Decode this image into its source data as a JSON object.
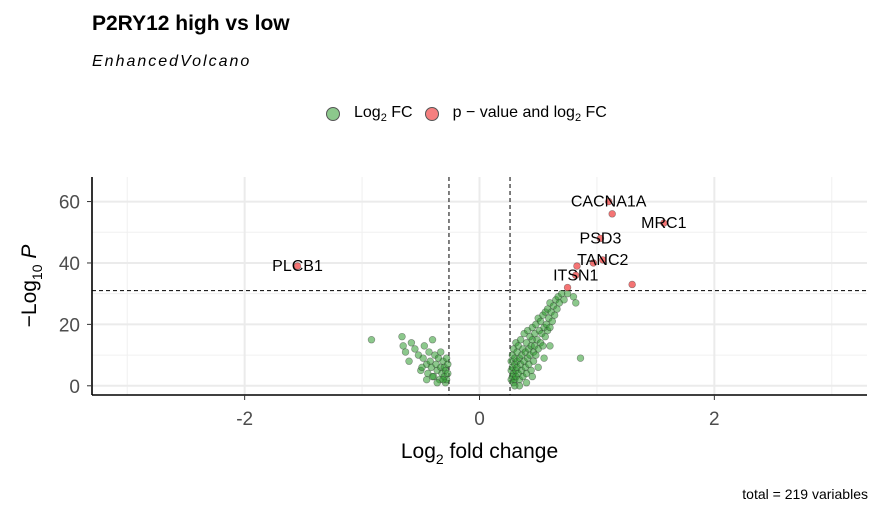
{
  "chart_data": {
    "type": "scatter",
    "title": "P2RY12 high vs low",
    "subtitle": "EnhancedVolcano",
    "xlabel": "Log2 fold change",
    "ylabel": "−Log10 P",
    "xlim": [
      -3.3,
      3.3
    ],
    "ylim": [
      -3,
      68
    ],
    "x_ticks": [
      -2,
      0,
      2
    ],
    "y_ticks": [
      0,
      20,
      40,
      60
    ],
    "x_tick_labels": [
      "-2",
      "0",
      "2"
    ],
    "y_tick_labels": [
      "0",
      "20",
      "40",
      "60"
    ],
    "fc_cutoff": [
      -0.26,
      0.26
    ],
    "p_cutoff": 31,
    "grid": true,
    "legend_position": "top",
    "caption": "total = 219 variables",
    "legend": [
      {
        "label": "Log",
        "sub": "2",
        "suffix": " FC",
        "color": "#2e9a2e"
      },
      {
        "label": "p − value and log",
        "sub": "2",
        "suffix": " FC",
        "color": "#ee2a2a"
      }
    ],
    "series": [
      {
        "name": "Log2 FC",
        "color": "#2e9a2e",
        "points": [
          [
            -0.92,
            15
          ],
          [
            -0.66,
            16
          ],
          [
            -0.65,
            13
          ],
          [
            -0.63,
            11
          ],
          [
            -0.6,
            8
          ],
          [
            -0.58,
            14
          ],
          [
            -0.55,
            12
          ],
          [
            -0.52,
            10
          ],
          [
            -0.5,
            5
          ],
          [
            -0.48,
            9
          ],
          [
            -0.47,
            13
          ],
          [
            -0.45,
            7
          ],
          [
            -0.44,
            4
          ],
          [
            -0.43,
            11
          ],
          [
            -0.42,
            8
          ],
          [
            -0.41,
            6
          ],
          [
            -0.4,
            15
          ],
          [
            -0.39,
            3
          ],
          [
            -0.38,
            10
          ],
          [
            -0.37,
            7
          ],
          [
            -0.36,
            5
          ],
          [
            -0.35,
            9
          ],
          [
            -0.34,
            2
          ],
          [
            -0.33,
            6
          ],
          [
            -0.32,
            4
          ],
          [
            -0.31,
            8
          ],
          [
            -0.3,
            3
          ],
          [
            -0.3,
            6
          ],
          [
            -0.29,
            1
          ],
          [
            -0.29,
            5
          ],
          [
            -0.28,
            2
          ],
          [
            -0.28,
            9
          ],
          [
            -0.27,
            4
          ],
          [
            -0.27,
            7
          ],
          [
            -0.45,
            2
          ],
          [
            -0.36,
            1
          ],
          [
            -0.33,
            11
          ],
          [
            -0.31,
            2
          ],
          [
            -0.49,
            6
          ],
          [
            -0.4,
            3
          ],
          [
            0.27,
            2
          ],
          [
            0.27,
            5
          ],
          [
            0.27,
            8
          ],
          [
            0.28,
            3
          ],
          [
            0.28,
            10
          ],
          [
            0.28,
            6
          ],
          [
            0.29,
            1
          ],
          [
            0.29,
            4
          ],
          [
            0.29,
            12
          ],
          [
            0.3,
            7
          ],
          [
            0.3,
            9
          ],
          [
            0.3,
            2
          ],
          [
            0.31,
            5
          ],
          [
            0.31,
            14
          ],
          [
            0.31,
            3
          ],
          [
            0.32,
            8
          ],
          [
            0.32,
            11
          ],
          [
            0.32,
            6
          ],
          [
            0.33,
            4
          ],
          [
            0.33,
            13
          ],
          [
            0.34,
            9
          ],
          [
            0.34,
            2
          ],
          [
            0.35,
            7
          ],
          [
            0.35,
            15
          ],
          [
            0.36,
            5
          ],
          [
            0.36,
            10
          ],
          [
            0.37,
            12
          ],
          [
            0.37,
            3
          ],
          [
            0.38,
            8
          ],
          [
            0.38,
            17
          ],
          [
            0.39,
            6
          ],
          [
            0.39,
            11
          ],
          [
            0.4,
            14
          ],
          [
            0.4,
            4
          ],
          [
            0.41,
            9
          ],
          [
            0.41,
            18
          ],
          [
            0.42,
            12
          ],
          [
            0.42,
            7
          ],
          [
            0.43,
            16
          ],
          [
            0.43,
            10
          ],
          [
            0.44,
            13
          ],
          [
            0.44,
            5
          ],
          [
            0.45,
            19
          ],
          [
            0.45,
            15
          ],
          [
            0.46,
            11
          ],
          [
            0.46,
            8
          ],
          [
            0.47,
            17
          ],
          [
            0.47,
            13
          ],
          [
            0.48,
            20
          ],
          [
            0.48,
            10
          ],
          [
            0.49,
            15
          ],
          [
            0.5,
            22
          ],
          [
            0.5,
            12
          ],
          [
            0.51,
            18
          ],
          [
            0.52,
            14
          ],
          [
            0.52,
            21
          ],
          [
            0.53,
            17
          ],
          [
            0.54,
            23
          ],
          [
            0.54,
            13
          ],
          [
            0.55,
            19
          ],
          [
            0.56,
            16
          ],
          [
            0.56,
            24
          ],
          [
            0.57,
            20
          ],
          [
            0.58,
            18
          ],
          [
            0.58,
            25
          ],
          [
            0.59,
            22
          ],
          [
            0.6,
            27
          ],
          [
            0.6,
            19
          ],
          [
            0.61,
            24
          ],
          [
            0.62,
            21
          ],
          [
            0.63,
            26
          ],
          [
            0.64,
            23
          ],
          [
            0.65,
            28
          ],
          [
            0.66,
            25
          ],
          [
            0.67,
            29
          ],
          [
            0.68,
            27
          ],
          [
            0.7,
            30
          ],
          [
            0.72,
            28
          ],
          [
            0.75,
            30
          ],
          [
            0.8,
            29
          ],
          [
            0.82,
            27
          ],
          [
            0.86,
            9
          ],
          [
            0.34,
            0
          ],
          [
            0.3,
            0
          ],
          [
            0.4,
            1
          ],
          [
            0.45,
            3
          ],
          [
            0.55,
            9
          ],
          [
            0.6,
            13
          ],
          [
            0.5,
            6
          ]
        ]
      },
      {
        "name": "p – value and log2 FC",
        "color": "#ee2a2a",
        "points": [
          [
            -1.55,
            39
          ],
          [
            1.1,
            60
          ],
          [
            1.13,
            56
          ],
          [
            1.57,
            53
          ],
          [
            1.03,
            48
          ],
          [
            1.05,
            41
          ],
          [
            0.97,
            40
          ],
          [
            0.83,
            39
          ],
          [
            0.82,
            36
          ],
          [
            0.75,
            32
          ],
          [
            1.3,
            33
          ]
        ]
      }
    ],
    "labels": [
      {
        "text": "PLCB1",
        "x": -1.55,
        "y": 39
      },
      {
        "text": "CACNA1A",
        "x": 1.1,
        "y": 60
      },
      {
        "text": "MRC1",
        "x": 1.57,
        "y": 53
      },
      {
        "text": "PSD3",
        "x": 1.03,
        "y": 48
      },
      {
        "text": "TANC2",
        "x": 1.05,
        "y": 41
      },
      {
        "text": "ITSN1",
        "x": 0.82,
        "y": 36
      }
    ]
  }
}
